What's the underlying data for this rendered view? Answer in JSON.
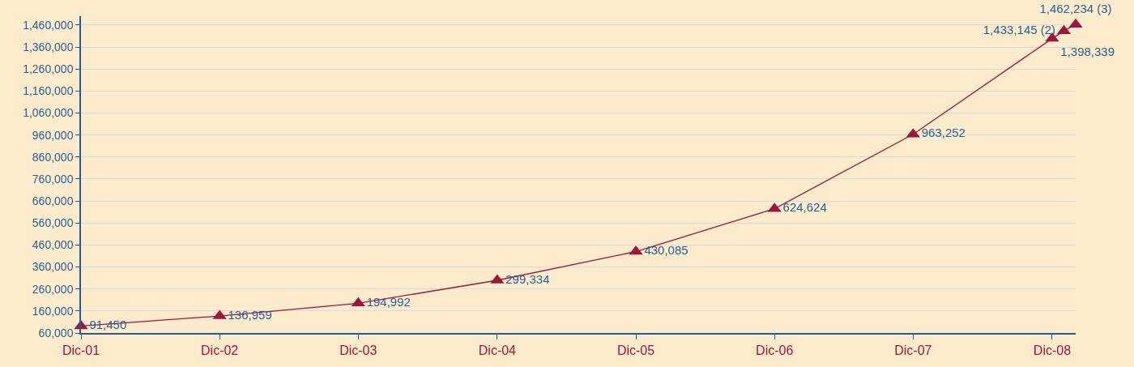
{
  "chart_data": {
    "type": "line",
    "x": [
      "2001-12",
      "2002-12",
      "2003-12",
      "2004-12",
      "2005-12",
      "2006-12",
      "2007-12",
      "2008-12",
      "2009-01",
      "2009-02"
    ],
    "values": [
      91450,
      136959,
      194992,
      299334,
      430085,
      624624,
      963252,
      1398339,
      1433145,
      1462234
    ],
    "value_labels": [
      "91,450",
      "136,959",
      "194,992",
      "299,334",
      "430,085",
      "624,624",
      "963,252",
      "1,398,339",
      "1,433,145 (2)",
      "1,462,234 (3)"
    ],
    "color": "#a0143c",
    "marker": "triangle",
    "line_style": "solid",
    "grid": "y",
    "legend": false,
    "xlim": [
      "2001-12",
      "2009-02"
    ],
    "xticks": [
      {
        "value": "2001-12",
        "label": "Dic-01"
      },
      {
        "value": "2002-12",
        "label": "Dic-02"
      },
      {
        "value": "2003-12",
        "label": "Dic-03"
      },
      {
        "value": "2004-12",
        "label": "Dic-04"
      },
      {
        "value": "2005-12",
        "label": "Dic-05"
      },
      {
        "value": "2006-12",
        "label": "Dic-06"
      },
      {
        "value": "2007-12",
        "label": "Dic-07"
      },
      {
        "value": "2008-12",
        "label": "Dic-08"
      }
    ],
    "ylim": [
      60000,
      1500000
    ],
    "yticks": [
      {
        "value": 60000,
        "label": "60,000"
      },
      {
        "value": 160000,
        "label": "160,000"
      },
      {
        "value": 260000,
        "label": "260,000"
      },
      {
        "value": 360000,
        "label": "360,000"
      },
      {
        "value": 460000,
        "label": "460,000"
      },
      {
        "value": 560000,
        "label": "560,000"
      },
      {
        "value": 660000,
        "label": "660,000"
      },
      {
        "value": 760000,
        "label": "760,000"
      },
      {
        "value": 860000,
        "label": "860,000"
      },
      {
        "value": 960000,
        "label": "960,000"
      },
      {
        "value": 1060000,
        "label": "1,060,000"
      },
      {
        "value": 1160000,
        "label": "1,160,000"
      },
      {
        "value": 1260000,
        "label": "1,260,000"
      },
      {
        "value": 1360000,
        "label": "1,360,000"
      },
      {
        "value": 1460000,
        "label": "1,460,000"
      }
    ]
  }
}
